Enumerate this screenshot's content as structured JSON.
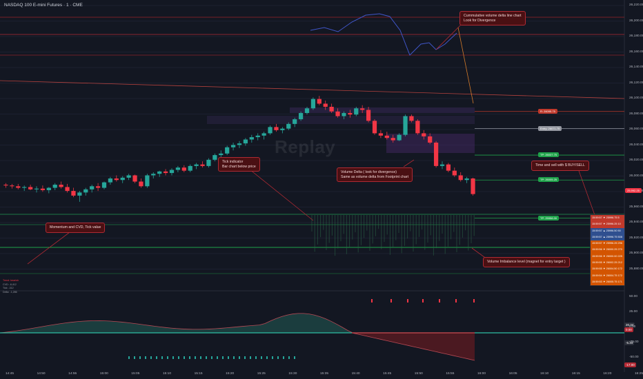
{
  "title": "NASDAQ 100 E-mini Futures · 1 · CME",
  "watermark": "Replay",
  "colors": {
    "up": "#26a69a",
    "down": "#f23645",
    "cvd_line": "#4056c9",
    "background": "#131722"
  },
  "callouts": [
    {
      "id": "cvd",
      "lines": [
        "Cummulative volume delta line chart",
        "Look for Divergence"
      ]
    },
    {
      "id": "tick",
      "lines": [
        "Tick indicator",
        "Bar chart below price"
      ]
    },
    {
      "id": "vdelta",
      "lines": [
        "Volume Delta ( look for divergence)",
        "Same as volume delta from Footprint chart"
      ]
    },
    {
      "id": "ts",
      "lines": [
        "Time and sell with $ BUY/SELL"
      ]
    },
    {
      "id": "momentum",
      "lines": [
        "Momentum and CVD, Tick value"
      ]
    },
    {
      "id": "imbalance",
      "lines": [
        "Volume Imbalance level (magnet for entry target )"
      ]
    }
  ],
  "chart_data": {
    "type": "candlestick",
    "title": "NASDAQ 100 E-mini Futures · 1 · CME",
    "x_ticks": [
      "14:45",
      "14:50",
      "14:55",
      "15:00",
      "15:05",
      "15:10",
      "15:15",
      "15:20",
      "15:25",
      "15:30",
      "15:35",
      "15:40",
      "15:45",
      "15:50",
      "15:55",
      "16:00",
      "16:05",
      "16:10",
      "16:15",
      "16:20",
      "16:25"
    ],
    "y_ticks": [
      "26,220.00",
      "26,200.00",
      "26,180.00",
      "26,160.00",
      "26,140.00",
      "26,120.00",
      "26,100.00",
      "26,080.00",
      "26,060.00",
      "26,040.00",
      "26,020.00",
      "26,000.00",
      "25,980.00",
      "25,960.00",
      "25,940.00",
      "25,920.00",
      "25,900.00",
      "25,880.00"
    ],
    "ylim": [
      25870,
      26230
    ],
    "candles": [
      [
        26000,
        26002,
        25996,
        25999
      ],
      [
        25999,
        26001,
        25995,
        25998
      ],
      [
        25998,
        26001,
        25994,
        25996
      ],
      [
        25996,
        25999,
        25992,
        25997
      ],
      [
        25997,
        26000,
        25993,
        25994
      ],
      [
        25994,
        25998,
        25990,
        25995
      ],
      [
        25995,
        25999,
        25991,
        25993
      ],
      [
        25993,
        25997,
        25989,
        25996
      ],
      [
        25996,
        26002,
        25993,
        26000
      ],
      [
        26000,
        26004,
        25995,
        25997
      ],
      [
        25997,
        26001,
        25990,
        25992
      ],
      [
        25992,
        25996,
        25984,
        25986
      ],
      [
        25986,
        25992,
        25978,
        25990
      ],
      [
        25990,
        25996,
        25986,
        25994
      ],
      [
        25994,
        26000,
        25990,
        25998
      ],
      [
        25998,
        26002,
        25992,
        25996
      ],
      [
        25996,
        26004,
        25994,
        26003
      ],
      [
        26003,
        26010,
        26000,
        26008
      ],
      [
        26008,
        26012,
        26004,
        26006
      ],
      [
        26006,
        26011,
        26002,
        26009
      ],
      [
        26009,
        26014,
        26006,
        26012
      ],
      [
        26012,
        26013,
        26002,
        26004
      ],
      [
        26004,
        26008,
        25996,
        25998
      ],
      [
        25998,
        26014,
        25996,
        26012
      ],
      [
        26012,
        26016,
        26008,
        26014
      ],
      [
        26014,
        26018,
        26010,
        26017
      ],
      [
        26017,
        26020,
        26012,
        26015
      ],
      [
        26015,
        26021,
        26012,
        26019
      ],
      [
        26019,
        26024,
        26016,
        26022
      ],
      [
        26022,
        26025,
        26016,
        26018
      ],
      [
        26018,
        26026,
        26016,
        26024
      ],
      [
        26024,
        26028,
        26020,
        26026
      ],
      [
        26026,
        26030,
        26022,
        26024
      ],
      [
        26024,
        26034,
        26022,
        26032
      ],
      [
        26032,
        26040,
        26030,
        26038
      ],
      [
        26038,
        26044,
        26034,
        26040
      ],
      [
        26040,
        26050,
        26038,
        26048
      ],
      [
        26048,
        26054,
        26044,
        26051
      ],
      [
        26051,
        26056,
        26047,
        26053
      ],
      [
        26053,
        26060,
        26050,
        26058
      ],
      [
        26058,
        26064,
        26054,
        26061
      ],
      [
        26061,
        26066,
        26057,
        26063
      ],
      [
        26063,
        26068,
        26058,
        26066
      ],
      [
        26066,
        26076,
        26064,
        26074
      ],
      [
        26074,
        26078,
        26068,
        26070
      ],
      [
        26070,
        26074,
        26066,
        26072
      ],
      [
        26072,
        26080,
        26070,
        26078
      ],
      [
        26078,
        26086,
        26074,
        26084
      ],
      [
        26084,
        26094,
        26082,
        26092
      ],
      [
        26092,
        26100,
        26090,
        26098
      ],
      [
        26098,
        26112,
        26096,
        26110
      ],
      [
        26110,
        26114,
        26102,
        26104
      ],
      [
        26104,
        26108,
        26096,
        26100
      ],
      [
        26100,
        26104,
        26092,
        26094
      ],
      [
        26094,
        26098,
        26086,
        26088
      ],
      [
        26088,
        26094,
        26084,
        26092
      ],
      [
        26092,
        26096,
        26086,
        26090
      ],
      [
        26090,
        26100,
        26088,
        26098
      ],
      [
        26098,
        26102,
        26092,
        26096
      ],
      [
        26096,
        26100,
        26080,
        26082
      ],
      [
        26082,
        26084,
        26064,
        26066
      ],
      [
        26066,
        26070,
        26060,
        26063
      ],
      [
        26063,
        26068,
        26058,
        26060
      ],
      [
        26060,
        26064,
        26054,
        26057
      ],
      [
        26057,
        26066,
        26056,
        26064
      ],
      [
        26064,
        26090,
        26062,
        26088
      ],
      [
        26088,
        26090,
        26080,
        26082
      ],
      [
        26082,
        26084,
        26064,
        26066
      ],
      [
        26066,
        26070,
        26058,
        26062
      ],
      [
        26062,
        26066,
        26052,
        26054
      ],
      [
        26054,
        26056,
        26022,
        26024
      ],
      [
        26024,
        26030,
        26020,
        26026
      ],
      [
        26026,
        26028,
        26016,
        26018
      ],
      [
        26018,
        26022,
        26010,
        26012
      ],
      [
        26012,
        26016,
        26004,
        26006
      ],
      [
        26006,
        26010,
        26002,
        26008
      ],
      [
        26008,
        26009,
        25986,
        25988
      ]
    ],
    "levels": [
      {
        "price": 26094,
        "label": "R: 26095.75",
        "color": "#c0392b"
      },
      {
        "price": 26072,
        "label": "Entry: 26071.75",
        "color": "#9598a1"
      },
      {
        "price": 26038,
        "label": "TP: 26037.75",
        "color": "#1fa34a"
      },
      {
        "price": 26006,
        "label": "TP: 26005.25",
        "color": "#1fa34a"
      },
      {
        "price": 25957,
        "label": "TP: 25958.00",
        "color": "#1fa34a"
      }
    ],
    "last_price": "25,992.25",
    "cvd_line": [
      [
        450,
        44
      ],
      [
        470,
        40
      ],
      [
        490,
        46
      ],
      [
        510,
        32
      ],
      [
        530,
        22
      ],
      [
        550,
        20
      ],
      [
        565,
        24
      ],
      [
        580,
        44
      ],
      [
        594,
        80
      ],
      [
        610,
        64
      ],
      [
        622,
        62
      ],
      [
        632,
        72
      ],
      [
        645,
        64
      ],
      [
        662,
        48
      ]
    ],
    "time_and_sales": [
      {
        "time": "15:59:57",
        "side": "sell",
        "price": "25996.75",
        "size": "5"
      },
      {
        "time": "15:59:57",
        "side": "sell",
        "price": "25996.25",
        "size": "10"
      },
      {
        "time": "15:59:57",
        "side": "buy",
        "price": "25996.50",
        "size": "50"
      },
      {
        "time": "15:59:57",
        "side": "buy",
        "price": "25996.75",
        "size": "508"
      },
      {
        "time": "15:59:57",
        "side": "sell",
        "price": "25996.25",
        "size": "296"
      },
      {
        "time": "15:59:56",
        "side": "sell",
        "price": "26000.25",
        "size": "270"
      },
      {
        "time": "15:59:56",
        "side": "sell",
        "price": "26000.00",
        "size": "225"
      },
      {
        "time": "15:59:55",
        "side": "sell",
        "price": "26002.25",
        "size": "212"
      },
      {
        "time": "15:59:55",
        "side": "sell",
        "price": "26004.50",
        "size": "172"
      },
      {
        "time": "15:59:54",
        "side": "sell",
        "price": "26004.75",
        "size": "172"
      },
      {
        "time": "15:59:53",
        "side": "sell",
        "price": "26005.75",
        "size": "171"
      }
    ],
    "indicator": {
      "y_ticks": [
        "50.00",
        "25.00",
        "0.00",
        "-25.00",
        "-50.00"
      ],
      "tags": [
        {
          "label": "20.34",
          "color": "#ffffff",
          "bg": "#2a2e39"
        },
        {
          "label": "0.00",
          "color": "#ffffff",
          "bg": "#b22833"
        },
        {
          "label": "-5.34",
          "color": "#ffffff",
          "bg": "#2a2e39"
        },
        {
          "label": "-17.00",
          "color": "#ffffff",
          "bg": "#b22833"
        }
      ]
    },
    "mini_stats": [
      "Trend: bearish",
      "CVD: -8,412",
      "Tick: -312",
      "Delta: -1,286"
    ]
  }
}
